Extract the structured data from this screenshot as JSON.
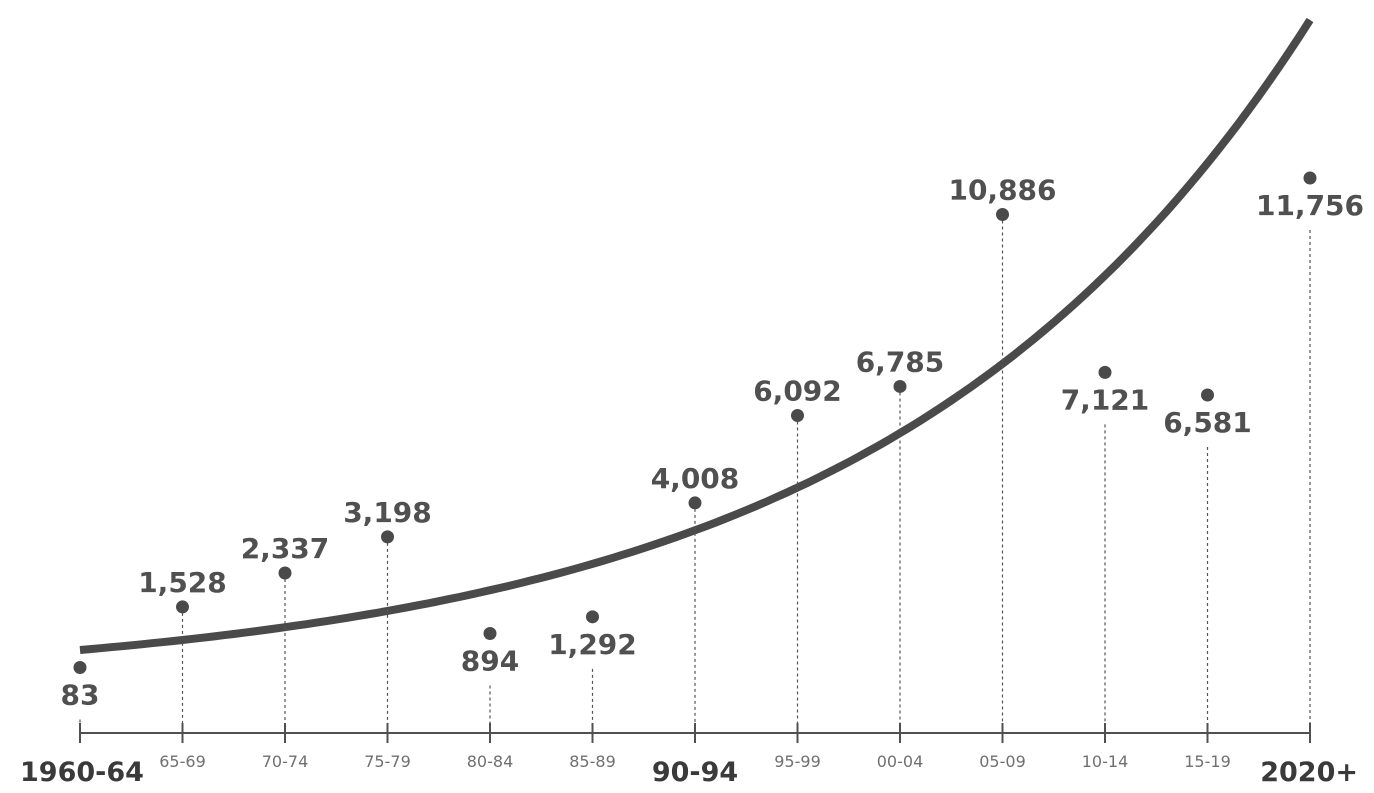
{
  "chart_data": {
    "type": "scatter",
    "categories": [
      "1960-64",
      "65-69",
      "70-74",
      "75-79",
      "80-84",
      "85-89",
      "90-94",
      "95-99",
      "00-04",
      "05-09",
      "10-14",
      "15-19",
      "2020+"
    ],
    "values": [
      83,
      1528,
      2337,
      3198,
      894,
      1292,
      4008,
      6092,
      6785,
      10886,
      7121,
      6581,
      11756
    ],
    "value_labels": [
      "83",
      "1,528",
      "2,337",
      "3,198",
      "894",
      "1,292",
      "4,008",
      "6,092",
      "6,785",
      "10,886",
      "7,121",
      "6,581",
      "11,756"
    ],
    "major_categories": [
      "1960-64",
      "90-94",
      "2020+"
    ],
    "label_positions": [
      "below",
      "above",
      "above",
      "above",
      "below",
      "below",
      "above",
      "above",
      "above",
      "above",
      "below",
      "below",
      "below"
    ],
    "trendline": "exponential",
    "grid": false,
    "colors": {
      "mark": "#4a4a4a",
      "trend": "#4a4a4a",
      "value_text": "#505050",
      "tick_text": "#707070",
      "major_tick_text": "#3a3a3a"
    }
  }
}
